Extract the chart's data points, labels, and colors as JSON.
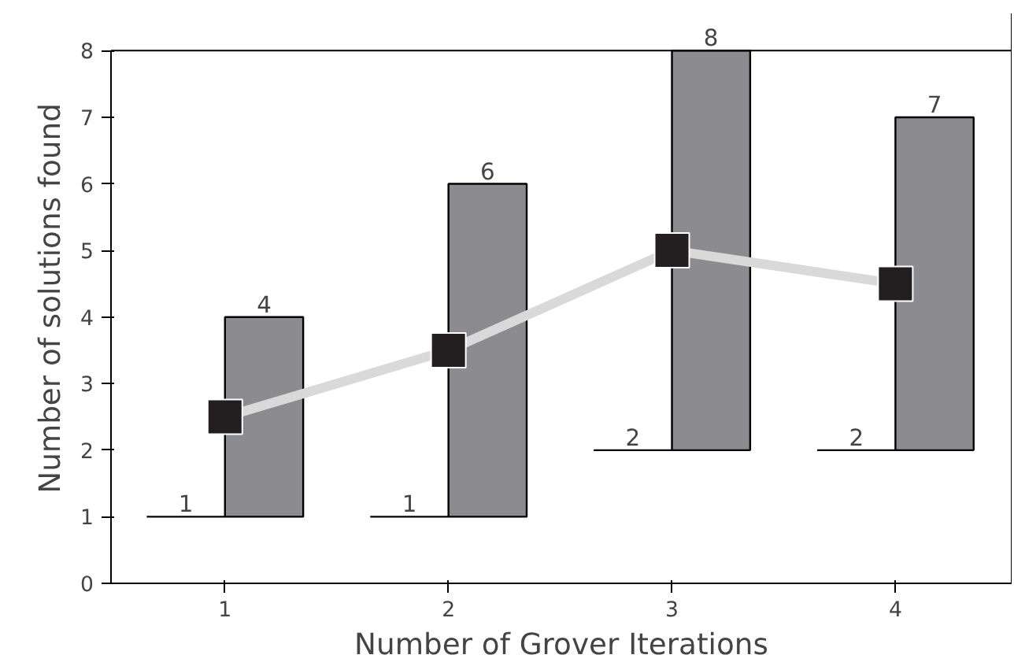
{
  "chart_data": {
    "type": "bar",
    "xlabel": "Number of Grover Iterations",
    "ylabel": "Number of solutions found",
    "categories": [
      "1",
      "2",
      "3",
      "4"
    ],
    "series": [
      {
        "color": "#000000",
        "base": [
          1,
          1,
          2,
          2
        ],
        "values": [
          0,
          0,
          0,
          0
        ],
        "value_labels": [
          "1",
          "1",
          "2",
          "2"
        ]
      },
      {
        "color": "#8c8c90",
        "base": [
          1,
          1,
          2,
          2
        ],
        "values": [
          3,
          5,
          6,
          5
        ],
        "value_labels": [
          "4",
          "6",
          "8",
          "7"
        ]
      },
      {
        "type": "line",
        "color": "#d9d9d9",
        "marker": "square",
        "values": [
          2.5,
          3.5,
          5,
          4.5
        ]
      }
    ],
    "ylim": [
      0,
      8
    ],
    "yticks": [
      0,
      1,
      2,
      3,
      4,
      5,
      6,
      7,
      8
    ],
    "grid": false
  }
}
